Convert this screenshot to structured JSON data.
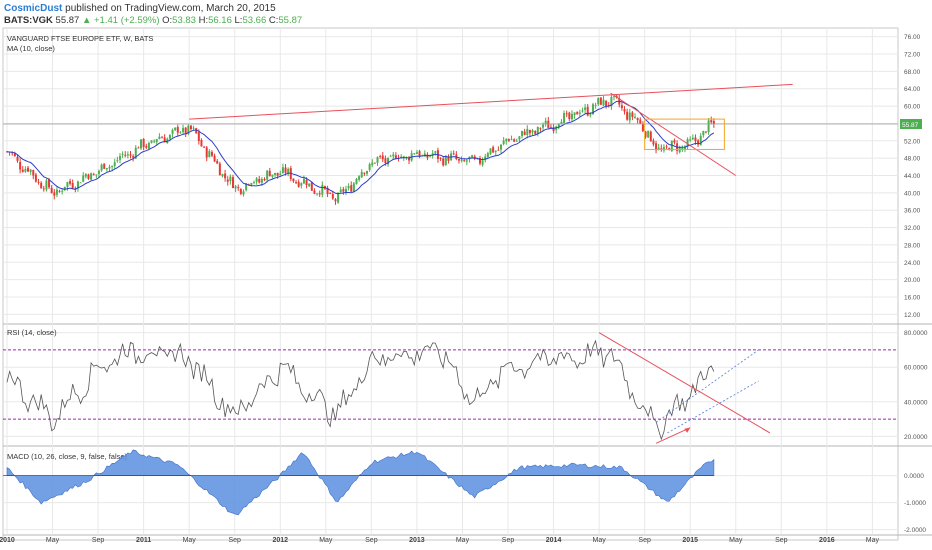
{
  "header": {
    "author": "CosmicDust",
    "published": "published on TradingView.com, March 20, 2015",
    "symbol": "BATS:VGK",
    "last": "55.87",
    "change": "▲ +1.41 (+2.59%)",
    "open_label": "O:",
    "open": "53.83",
    "high_label": "H:",
    "high": "56.16",
    "low_label": "L:",
    "low": "53.66",
    "close_label": "C:",
    "close": "55.87"
  },
  "colors": {
    "up": "#4caf50",
    "down": "#e53935",
    "ma": "#2b3ec9",
    "trend": "#e8505b",
    "box": "#f5a623",
    "rsi_band": "#9c27b0",
    "macd_fill": "#5b8fe0",
    "grid": "#e8e8e8"
  },
  "chart_data": [
    {
      "type": "candlestick",
      "title": "VANGUARD FTSE EUROPE ETF, W, BATS",
      "indicator": "MA (10, close)",
      "y_ticks": [
        "76.00",
        "72.00",
        "68.00",
        "64.00",
        "60.00",
        "56.00",
        "52.00",
        "48.00",
        "44.00",
        "40.00",
        "36.00",
        "32.00",
        "28.00",
        "24.00",
        "20.00",
        "16.00",
        "12.00"
      ],
      "ylim": [
        10,
        78
      ],
      "last_price_label": "55.87",
      "x_ticks": [
        "2010",
        "May",
        "Sep",
        "2011",
        "May",
        "Sep",
        "2012",
        "May",
        "Sep",
        "2013",
        "May",
        "Sep",
        "2014",
        "May",
        "Sep",
        "2015",
        "May",
        "Sep",
        "2016",
        "May"
      ],
      "key_points": [
        {
          "date": "2010-01",
          "price": 49.5
        },
        {
          "date": "2010-05",
          "price": 40
        },
        {
          "date": "2010-09",
          "price": 45
        },
        {
          "date": "2011-01",
          "price": 51
        },
        {
          "date": "2011-05",
          "price": 55
        },
        {
          "date": "2011-09",
          "price": 41
        },
        {
          "date": "2012-01",
          "price": 45
        },
        {
          "date": "2012-06",
          "price": 38.5
        },
        {
          "date": "2012-09",
          "price": 47
        },
        {
          "date": "2013-01",
          "price": 49
        },
        {
          "date": "2013-06",
          "price": 47
        },
        {
          "date": "2013-09",
          "price": 52
        },
        {
          "date": "2014-01",
          "price": 56
        },
        {
          "date": "2014-06",
          "price": 61.5
        },
        {
          "date": "2014-09",
          "price": 55
        },
        {
          "date": "2014-10",
          "price": 50
        },
        {
          "date": "2015-01",
          "price": 51
        },
        {
          "date": "2015-03",
          "price": 55.87
        }
      ],
      "annotations": {
        "upper_trendline": {
          "from": {
            "date": "2011-05",
            "price": 57
          },
          "to": {
            "date": "2015-10",
            "price": 65
          }
        },
        "down_trendline": {
          "from": {
            "date": "2014-06",
            "price": 63
          },
          "to": {
            "date": "2015-05",
            "price": 44
          }
        },
        "range_box": {
          "from_date": "2014-09",
          "to_date": "2015-04",
          "low": 50,
          "high": 57
        }
      }
    },
    {
      "type": "line",
      "title": "RSI (14, close)",
      "y_ticks": [
        "80.0000",
        "60.0000",
        "40.0000",
        "20.0000"
      ],
      "ylim": [
        15,
        85
      ],
      "bands": [
        70,
        30
      ],
      "key_points": [
        {
          "date": "2010-01",
          "value": 55
        },
        {
          "date": "2010-05",
          "value": 30
        },
        {
          "date": "2010-09",
          "value": 60
        },
        {
          "date": "2010-12",
          "value": 70
        },
        {
          "date": "2011-05",
          "value": 65
        },
        {
          "date": "2011-09",
          "value": 32
        },
        {
          "date": "2012-01",
          "value": 60
        },
        {
          "date": "2012-06",
          "value": 32
        },
        {
          "date": "2012-09",
          "value": 65
        },
        {
          "date": "2013-03",
          "value": 70
        },
        {
          "date": "2013-06",
          "value": 40
        },
        {
          "date": "2013-09",
          "value": 60
        },
        {
          "date": "2014-01",
          "value": 65
        },
        {
          "date": "2014-06",
          "value": 68
        },
        {
          "date": "2014-10",
          "value": 25
        },
        {
          "date": "2015-01",
          "value": 45
        },
        {
          "date": "2015-03",
          "value": 60
        }
      ]
    },
    {
      "type": "area",
      "title": "MACD (10, 26, close, 9, false, false)",
      "y_ticks": [
        "0.0000",
        "-1.0000",
        "-2.0000"
      ],
      "ylim": [
        -2.2,
        1.1
      ],
      "key_points": [
        {
          "date": "2010-01",
          "value": 0.3
        },
        {
          "date": "2010-04",
          "value": -1.0
        },
        {
          "date": "2010-08",
          "value": -0.2
        },
        {
          "date": "2010-12",
          "value": 0.9
        },
        {
          "date": "2011-04",
          "value": 0.4
        },
        {
          "date": "2011-09",
          "value": -1.5
        },
        {
          "date": "2012-01",
          "value": 0
        },
        {
          "date": "2012-03",
          "value": 0.9
        },
        {
          "date": "2012-06",
          "value": -1.0
        },
        {
          "date": "2012-09",
          "value": 0.5
        },
        {
          "date": "2013-01",
          "value": 0.9
        },
        {
          "date": "2013-06",
          "value": -0.8
        },
        {
          "date": "2013-10",
          "value": 0.3
        },
        {
          "date": "2014-03",
          "value": 0.4
        },
        {
          "date": "2014-07",
          "value": 0.3
        },
        {
          "date": "2014-11",
          "value": -1.0
        },
        {
          "date": "2015-02",
          "value": 0.3
        },
        {
          "date": "2015-03",
          "value": 0.6
        }
      ]
    }
  ]
}
